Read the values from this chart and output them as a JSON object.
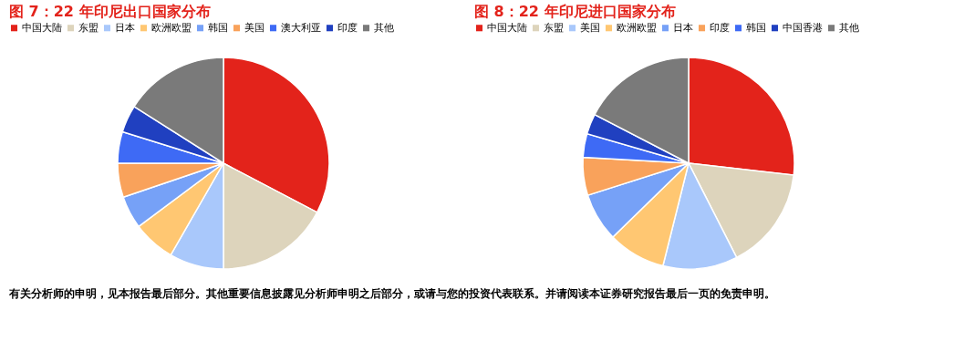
{
  "chart_data": [
    {
      "type": "pie",
      "title": "图 7：22 年印尼出口国家分布",
      "legend": "top",
      "categories": [
        "中国大陆",
        "东盟",
        "日本",
        "欧洲欧盟",
        "韩国",
        "美国",
        "澳大利亚",
        "印度",
        "其他"
      ],
      "values": [
        32.7,
        17.3,
        8.3,
        6.5,
        5.0,
        5.2,
        4.8,
        4.2,
        16.0
      ],
      "colors": [
        "#e3231b",
        "#ddd4bc",
        "#a9c8fb",
        "#ffc772",
        "#76a1f7",
        "#f9a25b",
        "#3e6af5",
        "#2040c0",
        "#7a7a7a"
      ],
      "annotations": [
        "有关分析师的申明，见本报告最后部分。其他重要信息披露见分析师申明之后部分，或请与您的投资代表联系。并请阅读本证券研究报告最后一页的免责申明。"
      ]
    },
    {
      "type": "pie",
      "title": "图 8：22 年印尼进口国家分布",
      "legend": "top",
      "categories": [
        "中国大陆",
        "东盟",
        "美国",
        "欧洲欧盟",
        "日本",
        "印度",
        "韩国",
        "中国香港",
        "其他"
      ],
      "values": [
        26.8,
        15.7,
        11.4,
        8.8,
        7.4,
        5.8,
        3.6,
        3.1,
        17.4
      ],
      "colors": [
        "#e3231b",
        "#ddd4bc",
        "#a9c8fb",
        "#ffc772",
        "#76a1f7",
        "#f9a25b",
        "#3e6af5",
        "#2040c0",
        "#7a7a7a"
      ]
    }
  ]
}
